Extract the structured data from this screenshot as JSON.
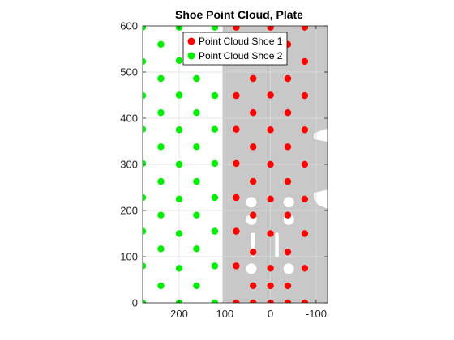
{
  "chart_data": {
    "type": "scatter",
    "title": "Shoe Point Cloud, Plate",
    "xlabel": "",
    "ylabel": "",
    "xlim": [
      -125,
      280
    ],
    "ylim": [
      0,
      600
    ],
    "x_reversed": true,
    "x_ticks": [
      200,
      100,
      0,
      -100
    ],
    "x_tick_labels": [
      "200",
      "100",
      "0",
      "-100"
    ],
    "y_ticks": [
      0,
      100,
      200,
      300,
      400,
      500,
      600
    ],
    "y_tick_labels": [
      "0",
      "100",
      "200",
      "300",
      "400",
      "500",
      "600"
    ],
    "grid": true,
    "legend_position": "top",
    "plate_color": "#c8c8c8",
    "plate": {
      "outline": [
        [
          105,
          0
        ],
        [
          -125,
          0
        ],
        [
          -125,
          204
        ],
        [
          -105,
          212
        ],
        [
          -95,
          225
        ],
        [
          -95,
          238
        ],
        [
          -125,
          245
        ],
        [
          -125,
          349
        ],
        [
          -95,
          355
        ],
        [
          -95,
          367
        ],
        [
          -115,
          375
        ],
        [
          -125,
          377
        ],
        [
          -125,
          600
        ],
        [
          105,
          600
        ]
      ],
      "slots": [
        [
          [
            42,
            152
          ],
          [
            34,
            152
          ],
          [
            34,
            98
          ],
          [
            42,
            98
          ]
        ],
        [
          [
            -10,
            152
          ],
          [
            -18,
            152
          ],
          [
            -18,
            98
          ],
          [
            -10,
            98
          ]
        ]
      ],
      "holes": [
        [
          42,
          218
        ],
        [
          -40,
          218
        ],
        [
          42,
          180
        ],
        [
          -40,
          180
        ],
        [
          42,
          74
        ],
        [
          -40,
          74
        ]
      ]
    },
    "series": [
      {
        "name": "Point Cloud Shoe 1",
        "color": "#ff0000",
        "x": [
          75,
          75,
          75,
          75,
          75,
          75,
          75,
          75,
          75,
          38,
          38,
          38,
          38,
          38,
          38,
          38,
          38,
          38,
          0,
          0,
          0,
          0,
          0,
          0,
          0,
          0,
          0,
          0,
          -38,
          -38,
          -38,
          -38,
          -38,
          -38,
          -38,
          -38,
          -38,
          -75,
          -75,
          -75,
          -75,
          -75,
          -75,
          -75,
          -75,
          -75
        ],
        "y": [
          0,
          80,
          155,
          228,
          302,
          376,
          449,
          523,
          597,
          37,
          110,
          190,
          263,
          338,
          412,
          486,
          560,
          0,
          0,
          75,
          150,
          225,
          300,
          375,
          450,
          525,
          597,
          37,
          37,
          110,
          190,
          263,
          338,
          412,
          486,
          560,
          0,
          0,
          75,
          150,
          225,
          300,
          375,
          449,
          523,
          597
        ]
      },
      {
        "name": "Point Cloud Shoe 2",
        "color": "#00ee00",
        "x": [
          280,
          280,
          280,
          280,
          280,
          280,
          280,
          280,
          280,
          240,
          240,
          240,
          240,
          240,
          240,
          240,
          240,
          200,
          200,
          200,
          200,
          200,
          200,
          200,
          200,
          200,
          162,
          162,
          162,
          162,
          162,
          162,
          162,
          162,
          122,
          122,
          122,
          122,
          122,
          122,
          122,
          122,
          122
        ],
        "y": [
          0,
          80,
          155,
          228,
          302,
          376,
          449,
          523,
          597,
          37,
          117,
          190,
          263,
          338,
          412,
          486,
          560,
          0,
          75,
          150,
          225,
          300,
          375,
          450,
          525,
          597,
          37,
          117,
          190,
          263,
          338,
          412,
          486,
          560,
          0,
          80,
          155,
          228,
          302,
          376,
          449,
          523,
          597
        ]
      }
    ]
  }
}
